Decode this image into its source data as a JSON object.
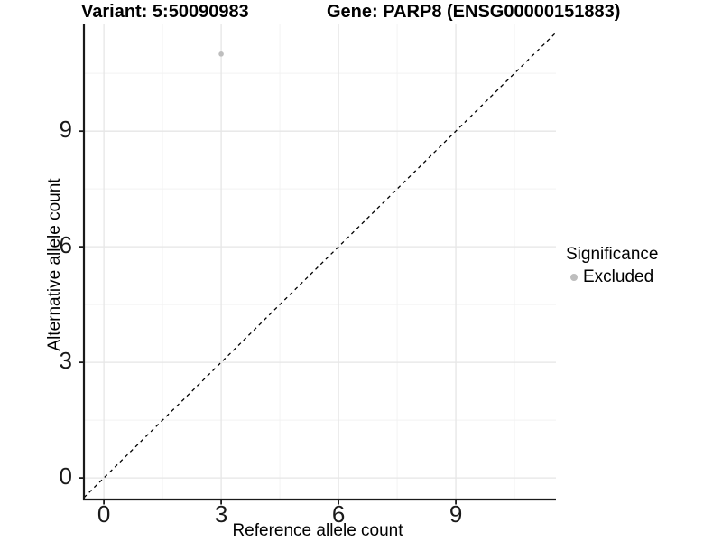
{
  "chart_data": {
    "type": "scatter",
    "titles": [
      "Variant: 5:50090983",
      "Gene: PARP8 (ENSG00000151883)"
    ],
    "xlabel": "Reference allele count",
    "ylabel": "Alternative allele count",
    "x_ticks": [
      0,
      3,
      6,
      9
    ],
    "y_ticks": [
      0,
      3,
      6,
      9
    ],
    "xlim": [
      -0.51,
      11.56
    ],
    "ylim": [
      -0.56,
      11.77
    ],
    "minor_grid_offset": 1.5,
    "grid": "major+minor",
    "points": [
      {
        "x": 3,
        "y": 11,
        "significance": "Excluded"
      }
    ],
    "identity_line": {
      "type": "y=x",
      "style": "dashed",
      "color": "#000000"
    },
    "legend": {
      "title": "Significance",
      "position": "right",
      "items": [
        {
          "label": "Excluded",
          "color": "#bebebe"
        }
      ]
    },
    "colors": {
      "point": "#bebebe",
      "grid_major": "#e6e6e6",
      "grid_minor": "#f2f2f2",
      "axis": "#1a1a1a",
      "tick_text": "#1a1a1a",
      "background": "#ffffff"
    },
    "tick_font_size": 26
  }
}
